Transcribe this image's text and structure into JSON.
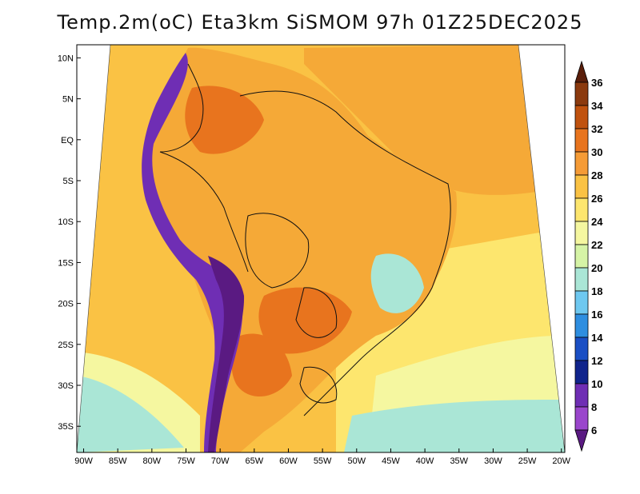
{
  "title": "Temp.2m(oC) Eta3km SiSMOM 97h 01Z25DEC2025",
  "lat_ticks": [
    {
      "value": 10,
      "label": "10N"
    },
    {
      "value": 5,
      "label": "5N"
    },
    {
      "value": 0,
      "label": "EQ"
    },
    {
      "value": -5,
      "label": "5S"
    },
    {
      "value": -10,
      "label": "10S"
    },
    {
      "value": -15,
      "label": "15S"
    },
    {
      "value": -20,
      "label": "20S"
    },
    {
      "value": -25,
      "label": "25S"
    },
    {
      "value": -30,
      "label": "30S"
    },
    {
      "value": -35,
      "label": "35S"
    }
  ],
  "lon_ticks": [
    {
      "value": -90,
      "label": "90W"
    },
    {
      "value": -85,
      "label": "85W"
    },
    {
      "value": -80,
      "label": "80W"
    },
    {
      "value": -75,
      "label": "75W"
    },
    {
      "value": -70,
      "label": "70W"
    },
    {
      "value": -65,
      "label": "65W"
    },
    {
      "value": -60,
      "label": "60W"
    },
    {
      "value": -55,
      "label": "55W"
    },
    {
      "value": -50,
      "label": "50W"
    },
    {
      "value": -45,
      "label": "45W"
    },
    {
      "value": -40,
      "label": "40W"
    },
    {
      "value": -35,
      "label": "35W"
    },
    {
      "value": -30,
      "label": "30W"
    },
    {
      "value": -25,
      "label": "25W"
    },
    {
      "value": -20,
      "label": "20W"
    }
  ],
  "colorbar": {
    "levels": [
      "36",
      "34",
      "32",
      "30",
      "28",
      "26",
      "24",
      "22",
      "20",
      "18",
      "16",
      "14",
      "12",
      "10",
      "8",
      "6"
    ],
    "colors": [
      "#5a1e0a",
      "#8b3a0e",
      "#c0520e",
      "#e8741e",
      "#f59b36",
      "#fac244",
      "#fde66e",
      "#f5f7a0",
      "#d6f4a6",
      "#aae6d6",
      "#6ec8f0",
      "#2e8ee0",
      "#1a4fc4",
      "#10248c",
      "#6f2eb4",
      "#9a46cc",
      "#5a1a82"
    ],
    "top_color": "#5a1e0a",
    "bottom_color": "#5a1a82"
  },
  "palette": {
    "ocean_warm": "#f5a937",
    "ocean_mid": "#fac244",
    "ocean_cool": "#fde66e",
    "ocean_pale": "#f5f7a0",
    "land_hot": "#e8741e",
    "land_warm": "#f5a937",
    "andes_cold": "#6f2eb4",
    "andes_deep": "#5a1a82",
    "south_cold": "#6ec8f0",
    "south_cooler": "#aae6d6"
  }
}
